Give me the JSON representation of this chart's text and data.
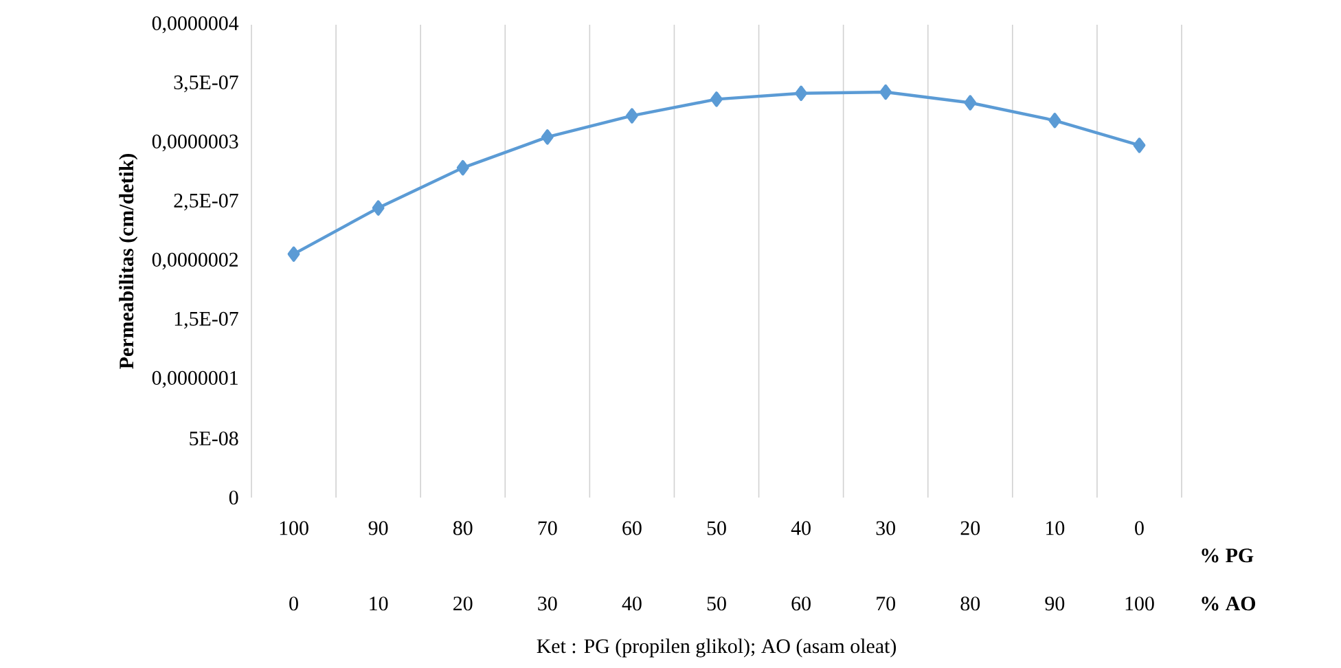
{
  "chart_data": {
    "type": "line",
    "ylabel": "Permeabilitas (cm/detik)",
    "categories": [
      "100",
      "90",
      "80",
      "70",
      "60",
      "50",
      "40",
      "30",
      "20",
      "10",
      "0"
    ],
    "series": [
      {
        "color": "#5b9bd5",
        "values": [
          2.06e-07,
          2.45e-07,
          2.79e-07,
          3.05e-07,
          3.23e-07,
          3.37e-07,
          3.42e-07,
          3.43e-07,
          3.34e-07,
          3.19e-07,
          2.98e-07
        ]
      }
    ],
    "ylim": [
      0,
      4e-07
    ],
    "yticks": [
      0,
      {
        "value": 5e-08,
        "label": "5E-08"
      },
      {
        "value": 1e-07,
        "label": "0,0000001"
      },
      {
        "value": 1.5e-07,
        "label": "1,5E-07"
      },
      {
        "value": 2e-07,
        "label": "0,0000002"
      },
      {
        "value": 2.5e-07,
        "label": "2,5E-07"
      },
      {
        "value": 3e-07,
        "label": "0,0000003"
      },
      {
        "value": 3.5e-07,
        "label": "3,5E-07"
      },
      {
        "value": 4e-07,
        "label": "0,0000004"
      }
    ],
    "grid": "x",
    "marker": "diamond",
    "line_style": "solid",
    "annotations": [
      "0",
      "10",
      "20",
      "30",
      "40",
      "50",
      "60",
      "70",
      "80",
      "90",
      "100",
      "% PG",
      "% AO",
      "Ket : PG (propilen glikol); AO (asam oleat)"
    ]
  }
}
